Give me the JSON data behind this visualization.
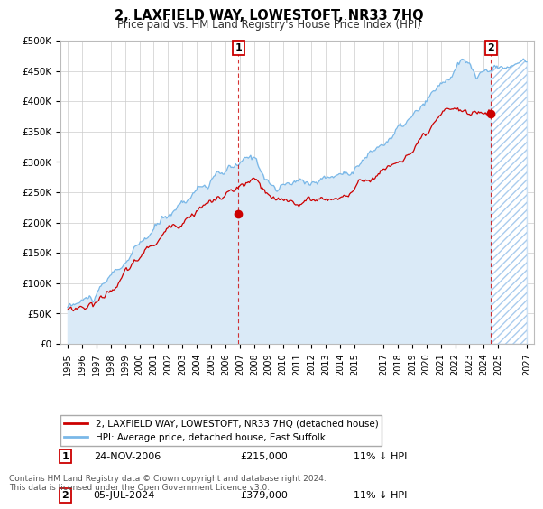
{
  "title": "2, LAXFIELD WAY, LOWESTOFT, NR33 7HQ",
  "subtitle": "Price paid vs. HM Land Registry's House Price Index (HPI)",
  "legend_line1": "2, LAXFIELD WAY, LOWESTOFT, NR33 7HQ (detached house)",
  "legend_line2": "HPI: Average price, detached house, East Suffolk",
  "footnote1": "Contains HM Land Registry data © Crown copyright and database right 2024.",
  "footnote2": "This data is licensed under the Open Government Licence v3.0.",
  "sale1_date": "24-NOV-2006",
  "sale1_price": "£215,000",
  "sale1_hpi": "11% ↓ HPI",
  "sale2_date": "05-JUL-2024",
  "sale2_price": "£379,000",
  "sale2_hpi": "11% ↓ HPI",
  "sale1_x": 2006.9,
  "sale1_y": 215000,
  "sale2_x": 2024.5,
  "sale2_y": 379000,
  "hpi_color": "#7ab8e8",
  "price_color": "#cc0000",
  "background_color": "#ffffff",
  "plot_bg_color": "#ffffff",
  "grid_color": "#cccccc",
  "hpi_fill_color": "#daeaf7",
  "xmin": 1994.5,
  "xmax": 2027.5,
  "ymin": 0,
  "ymax": 500000,
  "yticks": [
    0,
    50000,
    100000,
    150000,
    200000,
    250000,
    300000,
    350000,
    400000,
    450000,
    500000
  ],
  "ytick_labels": [
    "£0",
    "£50K",
    "£100K",
    "£150K",
    "£200K",
    "£250K",
    "£300K",
    "£350K",
    "£400K",
    "£450K",
    "£500K"
  ],
  "xtick_years": [
    1995,
    1996,
    1997,
    1998,
    1999,
    2000,
    2001,
    2002,
    2003,
    2004,
    2005,
    2006,
    2007,
    2008,
    2009,
    2010,
    2011,
    2012,
    2013,
    2014,
    2015,
    2017,
    2018,
    2019,
    2020,
    2021,
    2022,
    2023,
    2024,
    2025,
    2027
  ],
  "hpi_end_year": 2025.0,
  "projection_end_year": 2027.5
}
